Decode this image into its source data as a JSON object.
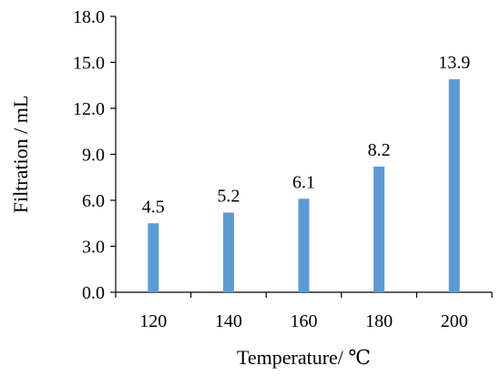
{
  "chart_data": {
    "type": "bar",
    "categories": [
      "120",
      "140",
      "160",
      "180",
      "200"
    ],
    "values": [
      4.5,
      5.2,
      6.1,
      8.2,
      13.9
    ],
    "data_labels": [
      "4.5",
      "5.2",
      "6.1",
      "8.2",
      "13.9"
    ],
    "y_ticks": [
      "0.0",
      "3.0",
      "6.0",
      "9.0",
      "12.0",
      "15.0",
      "18.0"
    ],
    "y_tick_values": [
      0,
      3,
      6,
      9,
      12,
      15,
      18
    ],
    "ylim": [
      0,
      18
    ],
    "title": "",
    "xlabel": "Temperature/ ℃",
    "ylabel": "Filtration / mL",
    "grid": false,
    "legend": "none",
    "bar_color": "#5b9bd5"
  }
}
